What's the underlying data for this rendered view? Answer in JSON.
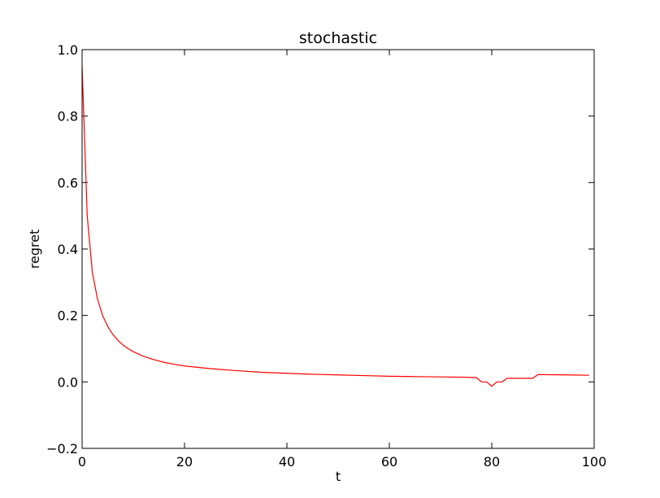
{
  "chart_data": {
    "type": "line",
    "title": "stochastic",
    "xlabel": "t",
    "ylabel": "regret",
    "xlim": [
      0,
      100
    ],
    "ylim": [
      -0.2,
      1.0
    ],
    "xticks": [
      0,
      20,
      40,
      60,
      80,
      100
    ],
    "xtick_labels": [
      "0",
      "20",
      "40",
      "60",
      "80",
      "100"
    ],
    "yticks": [
      -0.2,
      0.0,
      0.2,
      0.4,
      0.6,
      0.8,
      1.0
    ],
    "ytick_labels": [
      "−0.2",
      "0.0",
      "0.2",
      "0.4",
      "0.6",
      "0.8",
      "1.0"
    ],
    "grid": false,
    "series": [
      {
        "color": "#ff0000",
        "x": [
          0,
          1,
          2,
          3,
          4,
          5,
          6,
          7,
          8,
          9,
          10,
          12,
          14,
          16,
          18,
          20,
          25,
          30,
          35,
          40,
          45,
          50,
          55,
          60,
          65,
          70,
          75,
          77,
          78,
          79,
          80,
          81,
          82,
          83,
          84,
          85,
          86,
          87,
          88,
          89,
          90,
          95,
          99
        ],
        "y": [
          0.95,
          0.5,
          0.33,
          0.25,
          0.2,
          0.167,
          0.143,
          0.125,
          0.111,
          0.1,
          0.091,
          0.077,
          0.067,
          0.059,
          0.053,
          0.048,
          0.04,
          0.034,
          0.029,
          0.026,
          0.023,
          0.021,
          0.019,
          0.017,
          0.016,
          0.015,
          0.014,
          0.013,
          0.0,
          0.0,
          -0.013,
          0.0,
          0.0,
          0.011,
          0.011,
          0.011,
          0.011,
          0.011,
          0.011,
          0.022,
          0.022,
          0.021,
          0.02
        ]
      }
    ]
  }
}
